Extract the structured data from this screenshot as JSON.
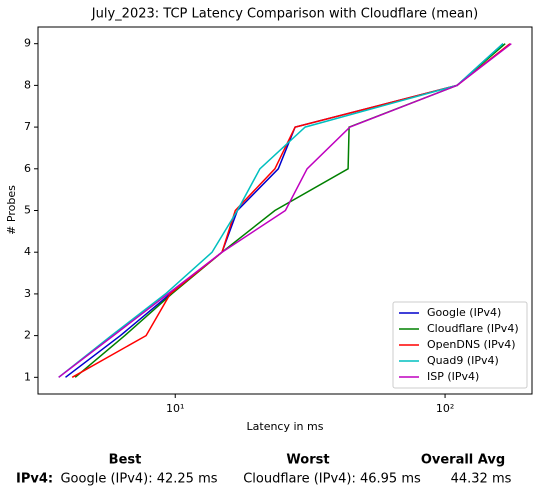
{
  "chart_data": {
    "type": "line",
    "title": "July_2023: TCP Latency Comparison with Cloudflare (mean)",
    "x_label": "Latency in ms",
    "y_label": "# Probes",
    "xscale": "log",
    "xlim": [
      3.1,
      210
    ],
    "xticks": [
      {
        "value": 10,
        "label": "10¹"
      },
      {
        "value": 100,
        "label": "10²"
      }
    ],
    "ylim": [
      0.6,
      9.4
    ],
    "yticks": [
      1,
      2,
      3,
      4,
      5,
      6,
      7,
      8,
      9
    ],
    "legend": "lower right",
    "series": [
      {
        "name": "Google (IPv4)",
        "color": "#0000cc",
        "x": [
          3.92,
          6.26,
          9.58,
          14.9,
          17.0,
          24.1,
          27.8,
          110.8,
          164
        ],
        "values": [
          1,
          2,
          3,
          4,
          5,
          6,
          7,
          8,
          9
        ]
      },
      {
        "name": "Cloudflare (IPv4)",
        "color": "#008000",
        "x": [
          4.26,
          6.5,
          9.7,
          14.9,
          23.4,
          43.7,
          44.1,
          110.8,
          167
        ],
        "values": [
          1,
          2,
          3,
          4,
          5,
          6,
          7,
          8,
          9
        ]
      },
      {
        "name": "OpenDNS (IPv4)",
        "color": "#ff0000",
        "x": [
          4.15,
          7.8,
          9.58,
          14.9,
          16.7,
          23.4,
          27.8,
          110.8,
          174
        ],
        "values": [
          1,
          2,
          3,
          4,
          5,
          6,
          7,
          8,
          9
        ]
      },
      {
        "name": "Quad9 (IPv4)",
        "color": "#00bfbf",
        "x": [
          3.7,
          5.8,
          9.2,
          13.7,
          17.0,
          20.6,
          30.3,
          110.8,
          164
        ],
        "values": [
          1,
          2,
          3,
          4,
          5,
          6,
          7,
          8,
          9
        ]
      },
      {
        "name": "ISP (IPv4)",
        "color": "#bf00bf",
        "x": [
          3.7,
          5.9,
          9.4,
          14.9,
          25.6,
          30.8,
          44.4,
          110.8,
          176
        ],
        "values": [
          1,
          2,
          3,
          4,
          5,
          6,
          7,
          8,
          9
        ]
      }
    ]
  },
  "summary": {
    "headers": [
      "Best",
      "Worst",
      "Overall Avg"
    ],
    "row_label": "IPv4:",
    "best": "Google (IPv4): 42.25 ms",
    "worst": "Cloudflare (IPv4): 46.95 ms",
    "average": "44.32 ms"
  }
}
